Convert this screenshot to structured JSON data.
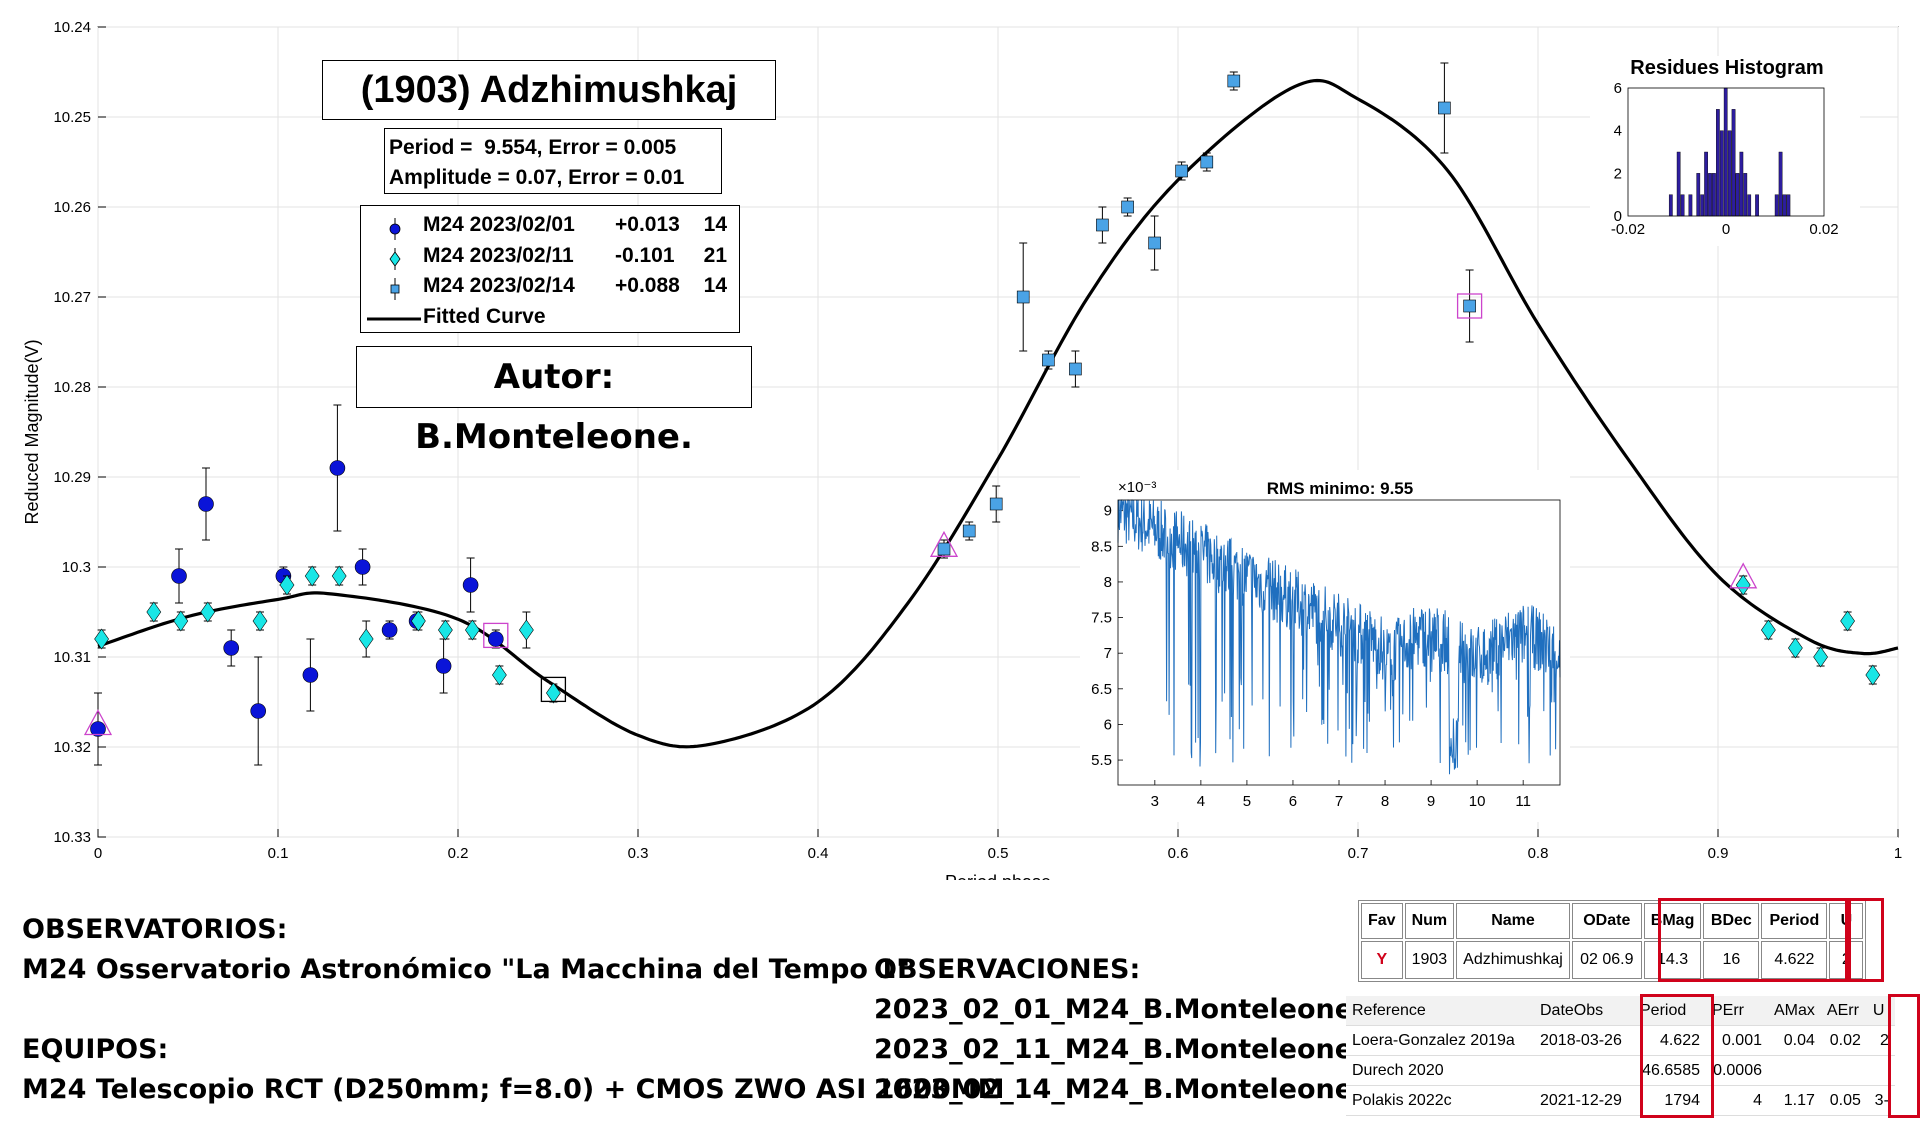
{
  "chart_data": [
    {
      "type": "scatter",
      "xlabel": "Period phase",
      "ylabel": "Reduced Magnitude(V)",
      "xlim": [
        0,
        1
      ],
      "ylim": [
        10.24,
        10.33
      ],
      "y_reversed": true,
      "x_ticks": [
        "0",
        "0.1",
        "0.2",
        "0.3",
        "0.4",
        "0.5",
        "0.6",
        "0.7",
        "0.8",
        "0.9",
        "1"
      ],
      "y_ticks": [
        "10.24",
        "10.25",
        "10.26",
        "10.27",
        "10.28",
        "10.29",
        "10.3",
        "10.31",
        "10.32",
        "10.33"
      ],
      "grid": true,
      "colors": {
        "s1": "#0a14d8",
        "s2": "#19e6e6",
        "s3": "#4aa3e6",
        "fit": "#000000",
        "marker": "#cc44cc"
      },
      "series": [
        {
          "name": "M24 2023/02/01",
          "offset": "+0.013",
          "count": "14",
          "marker": "circle",
          "points": [
            [
              0.0,
              10.318,
              0.004
            ],
            [
              0.045,
              10.301,
              0.003
            ],
            [
              0.06,
              10.293,
              0.004
            ],
            [
              0.074,
              10.309,
              0.002
            ],
            [
              0.089,
              10.316,
              0.006
            ],
            [
              0.103,
              10.301,
              0.001
            ],
            [
              0.118,
              10.312,
              0.004
            ],
            [
              0.133,
              10.289,
              0.007
            ],
            [
              0.147,
              10.3,
              0.002
            ],
            [
              0.162,
              10.307,
              0.001
            ],
            [
              0.177,
              10.306,
              0.001
            ],
            [
              0.192,
              10.311,
              0.003
            ],
            [
              0.207,
              10.302,
              0.003
            ],
            [
              0.221,
              10.308,
              0.001
            ]
          ]
        },
        {
          "name": "M24 2023/02/11",
          "offset": "-0.101",
          "count": "21",
          "marker": "diamond",
          "points": [
            [
              0.002,
              10.308,
              0.001
            ],
            [
              0.031,
              10.305,
              0.001
            ],
            [
              0.046,
              10.306,
              0.001
            ],
            [
              0.061,
              10.305,
              0.001
            ],
            [
              0.09,
              10.306,
              0.001
            ],
            [
              0.105,
              10.302,
              0.001
            ],
            [
              0.119,
              10.301,
              0.001
            ],
            [
              0.134,
              10.301,
              0.001
            ],
            [
              0.149,
              10.308,
              0.002
            ],
            [
              0.178,
              10.306,
              0.001
            ],
            [
              0.193,
              10.307,
              0.001
            ],
            [
              0.208,
              10.307,
              0.001
            ],
            [
              0.223,
              10.312,
              0.001
            ],
            [
              0.238,
              10.307,
              0.002
            ],
            [
              0.253,
              10.314,
              0.001
            ],
            [
              0.914,
              10.302,
              0.001
            ],
            [
              0.928,
              10.307,
              0.001
            ],
            [
              0.943,
              10.309,
              0.001
            ],
            [
              0.957,
              10.31,
              0.001
            ],
            [
              0.972,
              10.306,
              0.001
            ],
            [
              0.986,
              10.312,
              0.001
            ]
          ]
        },
        {
          "name": "M24 2023/02/14",
          "offset": "+0.088",
          "count": "14",
          "marker": "square",
          "points": [
            [
              0.47,
              10.298,
              0.001
            ],
            [
              0.484,
              10.296,
              0.001
            ],
            [
              0.499,
              10.293,
              0.002
            ],
            [
              0.514,
              10.27,
              0.006
            ],
            [
              0.528,
              10.277,
              0.001
            ],
            [
              0.543,
              10.278,
              0.002
            ],
            [
              0.558,
              10.262,
              0.002
            ],
            [
              0.572,
              10.26,
              0.001
            ],
            [
              0.587,
              10.264,
              0.003
            ],
            [
              0.602,
              10.256,
              0.001
            ],
            [
              0.616,
              10.255,
              0.001
            ],
            [
              0.631,
              10.246,
              0.001
            ],
            [
              0.748,
              10.249,
              0.005
            ],
            [
              0.762,
              10.271,
              0.004
            ]
          ]
        }
      ],
      "fit_curve": {
        "name": "Fitted Curve",
        "period": "9.554",
        "period_error": "0.005",
        "amplitude": "0.07",
        "amplitude_error": "0.01"
      },
      "annotations": {
        "title": "(1903) Adzhimushkaj",
        "period_line": "Period =  9.554, Error = 0.005",
        "amplitude_line": "Amplitude = 0.07, Error = 0.01",
        "author": "Autor: B.Monteleone."
      }
    },
    {
      "type": "bar",
      "title": "Residues Histogram",
      "xlim": [
        -0.02,
        0.02
      ],
      "ylim": [
        0,
        6
      ],
      "x_ticks": [
        "-0.02",
        "0",
        "0.02"
      ],
      "y_ticks": [
        "0",
        "2",
        "4",
        "6"
      ],
      "color": "#2d1d9e",
      "bins": [
        [
          -0.0112,
          1
        ],
        [
          -0.0096,
          3
        ],
        [
          -0.0088,
          1
        ],
        [
          -0.0072,
          1
        ],
        [
          -0.0056,
          2
        ],
        [
          -0.0048,
          1
        ],
        [
          -0.004,
          3
        ],
        [
          -0.0032,
          2
        ],
        [
          -0.0024,
          2
        ],
        [
          -0.0016,
          5
        ],
        [
          -0.0008,
          4
        ],
        [
          0.0,
          6
        ],
        [
          0.0008,
          4
        ],
        [
          0.0016,
          5
        ],
        [
          0.0024,
          2
        ],
        [
          0.0032,
          3
        ],
        [
          0.004,
          2
        ],
        [
          0.0048,
          1
        ],
        [
          0.0064,
          1
        ],
        [
          0.0104,
          1
        ],
        [
          0.0112,
          3
        ],
        [
          0.012,
          1
        ],
        [
          0.0128,
          1
        ]
      ]
    },
    {
      "type": "line",
      "title": "RMS minimo: 9.55",
      "exponent_label": "×10⁻³",
      "xlim": [
        2.2,
        11.8
      ],
      "ylim": [
        5.15,
        9.15
      ],
      "x_ticks": [
        "3",
        "4",
        "5",
        "6",
        "7",
        "8",
        "9",
        "10",
        "11"
      ],
      "y_ticks": [
        "5.5",
        "6",
        "6.5",
        "7",
        "7.5",
        "8",
        "8.5",
        "9"
      ],
      "color": "#1f6fbf",
      "curve_generated": true
    }
  ],
  "observatories": {
    "heading": "OBSERVATORIOS:",
    "line": "M24 Osservatorio Astronómico \"La Macchina del Tempo 1\"",
    "equip_heading": "EQUIPOS:",
    "equip_line": "M24 Telescopio RCT (D250mm; f=8.0) + CMOS ZWO ASI 1600MM"
  },
  "observations": {
    "heading": "OBSERVACIONES:",
    "items": [
      "2023_02_01_M24_B.Monteleone",
      "2023_02_11_M24_B.Monteleone",
      "2023_02_14_M24_B.Monteleone"
    ]
  },
  "table_summary": {
    "headers": [
      "Fav",
      "Num",
      "Name",
      "ODate",
      "BMag",
      "BDec",
      "Period",
      "U"
    ],
    "row": [
      "Y",
      "1903",
      "Adzhimushkaj",
      "02 06.9",
      "14.3",
      "16",
      "4.622",
      "2"
    ]
  },
  "table_refs": {
    "headers": [
      "Reference",
      "DateObs",
      "Period",
      "PErr",
      "AMax",
      "AErr",
      "U"
    ],
    "rows": [
      [
        "Loera-Gonzalez 2019a",
        "2018-03-26",
        "4.622",
        "0.001",
        "0.04",
        "0.02",
        "2"
      ],
      [
        "Durech 2020",
        "",
        "46.6585",
        "0.0006",
        "",
        "",
        ""
      ],
      [
        "Polakis 2022c",
        "2021-12-29",
        "1794",
        "4",
        "1.17",
        "0.05",
        "3-"
      ]
    ]
  }
}
